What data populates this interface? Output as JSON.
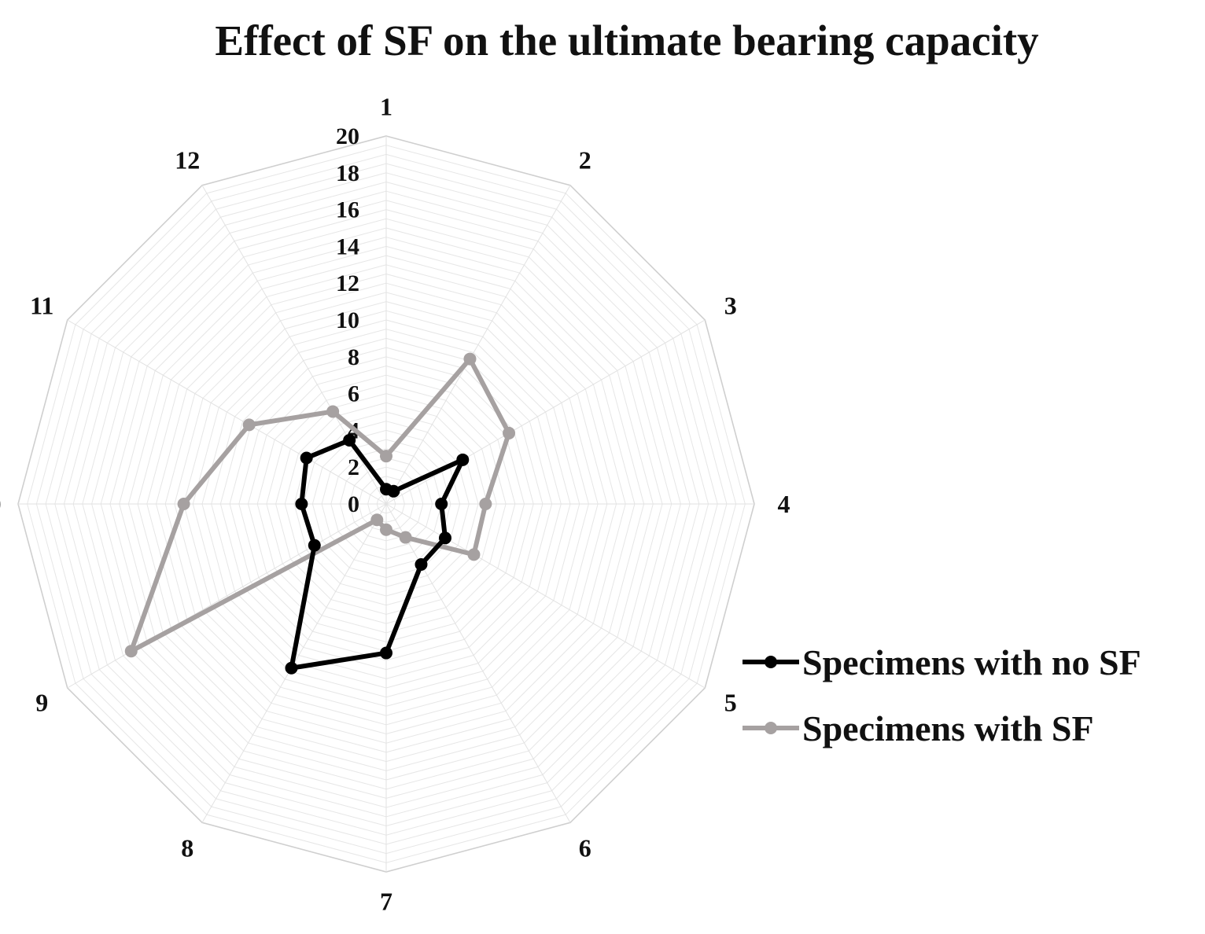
{
  "chart_data": {
    "type": "radar",
    "title": "Effect of SF on the ultimate bearing capacity",
    "categories": [
      "1",
      "2",
      "3",
      "4",
      "5",
      "6",
      "7",
      "8",
      "9",
      "10",
      "11",
      "12"
    ],
    "radial_ticks": [
      "0",
      "2",
      "4",
      "6",
      "8",
      "10",
      "12",
      "14",
      "16",
      "18",
      "20"
    ],
    "rlim": [
      0,
      20
    ],
    "grid": true,
    "legend_position": "right",
    "series": [
      {
        "name": "Specimens with no SF",
        "color": "#000000",
        "values": [
          0.8,
          0.8,
          4.8,
          3.0,
          3.7,
          3.8,
          8.1,
          10.3,
          4.5,
          4.6,
          5.0,
          4.0
        ]
      },
      {
        "name": "Specimens with SF",
        "color": "#a6a1a1",
        "values": [
          2.6,
          9.1,
          7.7,
          5.4,
          5.5,
          2.1,
          1.4,
          1.0,
          16.0,
          11.0,
          8.6,
          5.8
        ]
      }
    ]
  }
}
